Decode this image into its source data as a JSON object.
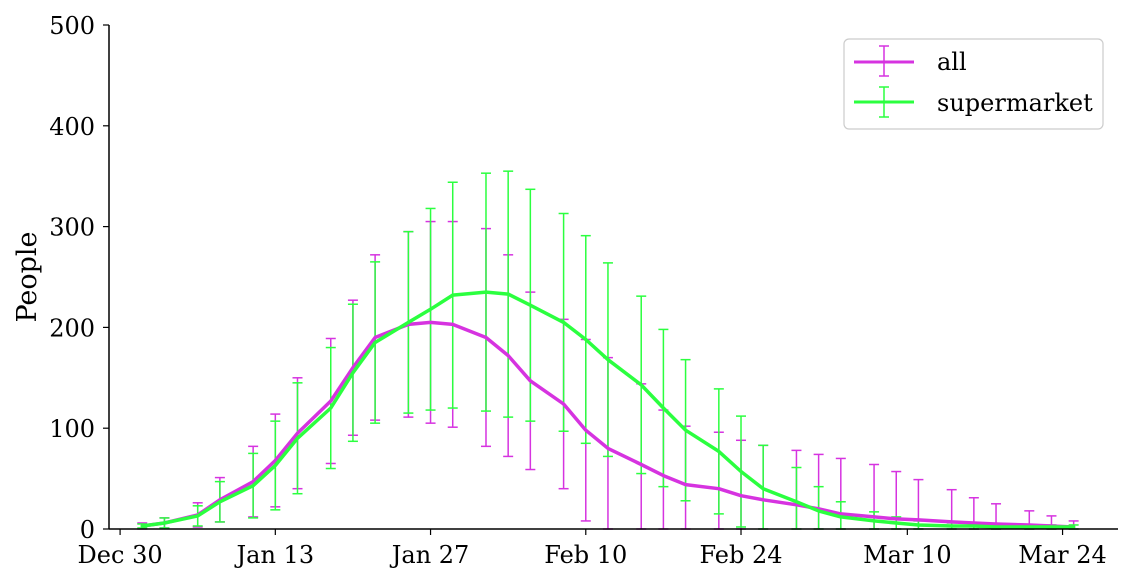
{
  "chart_data": {
    "type": "line",
    "title": "",
    "xlabel": "",
    "ylabel": "People",
    "xlim": [
      "2019-12-29",
      "2020-03-29"
    ],
    "ylim": [
      0,
      500
    ],
    "x_ticks": [
      {
        "date": "2019-12-30",
        "label": "Dec 30"
      },
      {
        "date": "2020-01-13",
        "label": "Jan 13"
      },
      {
        "date": "2020-01-27",
        "label": "Jan 27"
      },
      {
        "date": "2020-02-10",
        "label": "Feb 10"
      },
      {
        "date": "2020-02-24",
        "label": "Feb 24"
      },
      {
        "date": "2020-03-10",
        "label": "Mar 10"
      },
      {
        "date": "2020-03-24",
        "label": "Mar 24"
      }
    ],
    "y_ticks": [
      0,
      100,
      200,
      300,
      400,
      500
    ],
    "grid": false,
    "legend": {
      "position": "top-right",
      "entries": [
        "all",
        "supermarket"
      ]
    },
    "series": [
      {
        "name": "all",
        "color": "#d633e0",
        "x": [
          "2020-01-01",
          "2020-01-03",
          "2020-01-06",
          "2020-01-08",
          "2020-01-11",
          "2020-01-13",
          "2020-01-15",
          "2020-01-18",
          "2020-01-20",
          "2020-01-22",
          "2020-01-25",
          "2020-01-27",
          "2020-01-29",
          "2020-02-01",
          "2020-02-03",
          "2020-02-05",
          "2020-02-08",
          "2020-02-10",
          "2020-02-12",
          "2020-02-15",
          "2020-02-17",
          "2020-02-19",
          "2020-02-22",
          "2020-02-24",
          "2020-02-26",
          "2020-02-29",
          "2020-03-02",
          "2020-03-04",
          "2020-03-07",
          "2020-03-09",
          "2020-03-11",
          "2020-03-14",
          "2020-03-16",
          "2020-03-18",
          "2020-03-21",
          "2020-03-23",
          "2020-03-25"
        ],
        "y": [
          3,
          6,
          14,
          29,
          47,
          68,
          95,
          127,
          160,
          190,
          203,
          205,
          203,
          190,
          172,
          147,
          124,
          98,
          80,
          64,
          53,
          44,
          40,
          33,
          29,
          24,
          20,
          15,
          12,
          10,
          9,
          7,
          6,
          5,
          4,
          3,
          2
        ],
        "y_err": [
          3,
          5,
          12,
          22,
          35,
          46,
          55,
          62,
          67,
          82,
          92,
          100,
          102,
          108,
          100,
          88,
          84,
          90,
          90,
          80,
          65,
          58,
          56,
          55,
          54,
          54,
          54,
          55,
          52,
          47,
          40,
          32,
          25,
          20,
          14,
          10,
          6
        ]
      },
      {
        "name": "supermarket",
        "color": "#2bff3f",
        "x": [
          "2020-01-01",
          "2020-01-03",
          "2020-01-06",
          "2020-01-08",
          "2020-01-11",
          "2020-01-13",
          "2020-01-15",
          "2020-01-18",
          "2020-01-20",
          "2020-01-22",
          "2020-01-25",
          "2020-01-27",
          "2020-01-29",
          "2020-02-01",
          "2020-02-03",
          "2020-02-05",
          "2020-02-08",
          "2020-02-10",
          "2020-02-12",
          "2020-02-15",
          "2020-02-17",
          "2020-02-19",
          "2020-02-22",
          "2020-02-24",
          "2020-02-26",
          "2020-02-29",
          "2020-03-02",
          "2020-03-04",
          "2020-03-07",
          "2020-03-09",
          "2020-03-11",
          "2020-03-14",
          "2020-03-16",
          "2020-03-18",
          "2020-03-21",
          "2020-03-23",
          "2020-03-25"
        ],
        "y": [
          3,
          6,
          13,
          27,
          43,
          63,
          90,
          120,
          155,
          185,
          205,
          218,
          232,
          235,
          233,
          222,
          205,
          188,
          168,
          143,
          120,
          98,
          77,
          57,
          40,
          27,
          18,
          12,
          8,
          6,
          4,
          3,
          3,
          2,
          2,
          2,
          2
        ],
        "y_err": [
          2,
          5,
          10,
          20,
          32,
          44,
          55,
          60,
          68,
          80,
          90,
          100,
          112,
          118,
          122,
          115,
          108,
          103,
          96,
          88,
          78,
          70,
          62,
          55,
          43,
          34,
          24,
          15,
          9,
          6,
          4,
          3,
          3,
          2,
          2,
          2,
          2
        ]
      }
    ]
  }
}
